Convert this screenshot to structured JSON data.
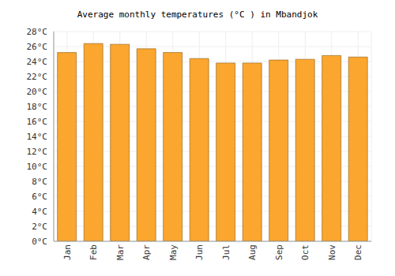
{
  "chart_data": {
    "type": "bar",
    "title": "Average monthly temperatures (°C ) in Mbandjok",
    "categories": [
      "Jan",
      "Feb",
      "Mar",
      "Apr",
      "May",
      "Jun",
      "Jul",
      "Aug",
      "Sep",
      "Oct",
      "Nov",
      "Dec"
    ],
    "values": [
      25.2,
      26.4,
      26.3,
      25.7,
      25.2,
      24.4,
      23.8,
      23.8,
      24.2,
      24.3,
      24.8,
      24.6
    ],
    "color": "#fba62f",
    "ylim": [
      0,
      28
    ],
    "yticks": [
      {
        "value": 0,
        "label": "0°C"
      },
      {
        "value": 2,
        "label": "2°C"
      },
      {
        "value": 4,
        "label": "4°C"
      },
      {
        "value": 6,
        "label": "6°C"
      },
      {
        "value": 8,
        "label": "8°C"
      },
      {
        "value": 10,
        "label": "10°C"
      },
      {
        "value": 12,
        "label": "12°C"
      },
      {
        "value": 14,
        "label": "14°C"
      },
      {
        "value": 16,
        "label": "16°C"
      },
      {
        "value": 18,
        "label": "18°C"
      },
      {
        "value": 20,
        "label": "20°C"
      },
      {
        "value": 22,
        "label": "22°C"
      },
      {
        "value": 24,
        "label": "24°C"
      },
      {
        "value": 26,
        "label": "26°C"
      },
      {
        "value": 28,
        "label": "28°C"
      }
    ],
    "grid": true
  }
}
